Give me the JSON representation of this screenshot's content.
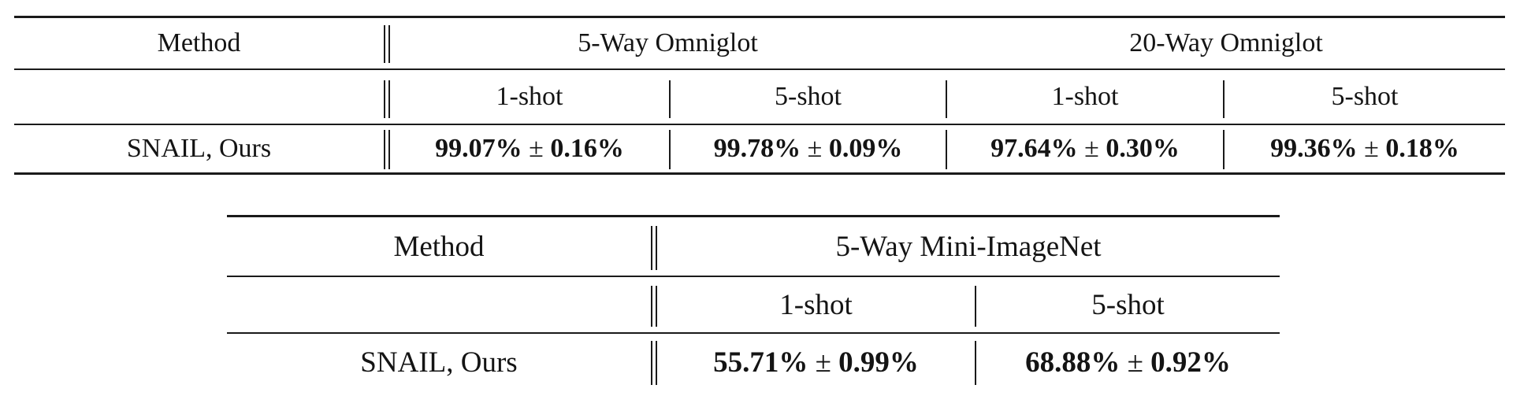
{
  "table1": {
    "method_header": "Method",
    "group_headers": [
      "5-Way Omniglot",
      "20-Way Omniglot"
    ],
    "shot_headers": [
      "1-shot",
      "5-shot",
      "1-shot",
      "5-shot"
    ],
    "row_label": "SNAIL, Ours",
    "results": [
      {
        "value": "99.07%",
        "pm": "±",
        "err": "0.16%"
      },
      {
        "value": "99.78%",
        "pm": "±",
        "err": "0.09%"
      },
      {
        "value": "97.64%",
        "pm": "±",
        "err": "0.30%"
      },
      {
        "value": "99.36%",
        "pm": "±",
        "err": "0.18%"
      }
    ]
  },
  "table2": {
    "method_header": "Method",
    "group_header": "5-Way Mini-ImageNet",
    "shot_headers": [
      "1-shot",
      "5-shot"
    ],
    "row_label": "SNAIL, Ours",
    "results": [
      {
        "value": "55.71%",
        "pm": "±",
        "err": "0.99%"
      },
      {
        "value": "68.88%",
        "pm": "±",
        "err": "0.92%"
      }
    ]
  }
}
